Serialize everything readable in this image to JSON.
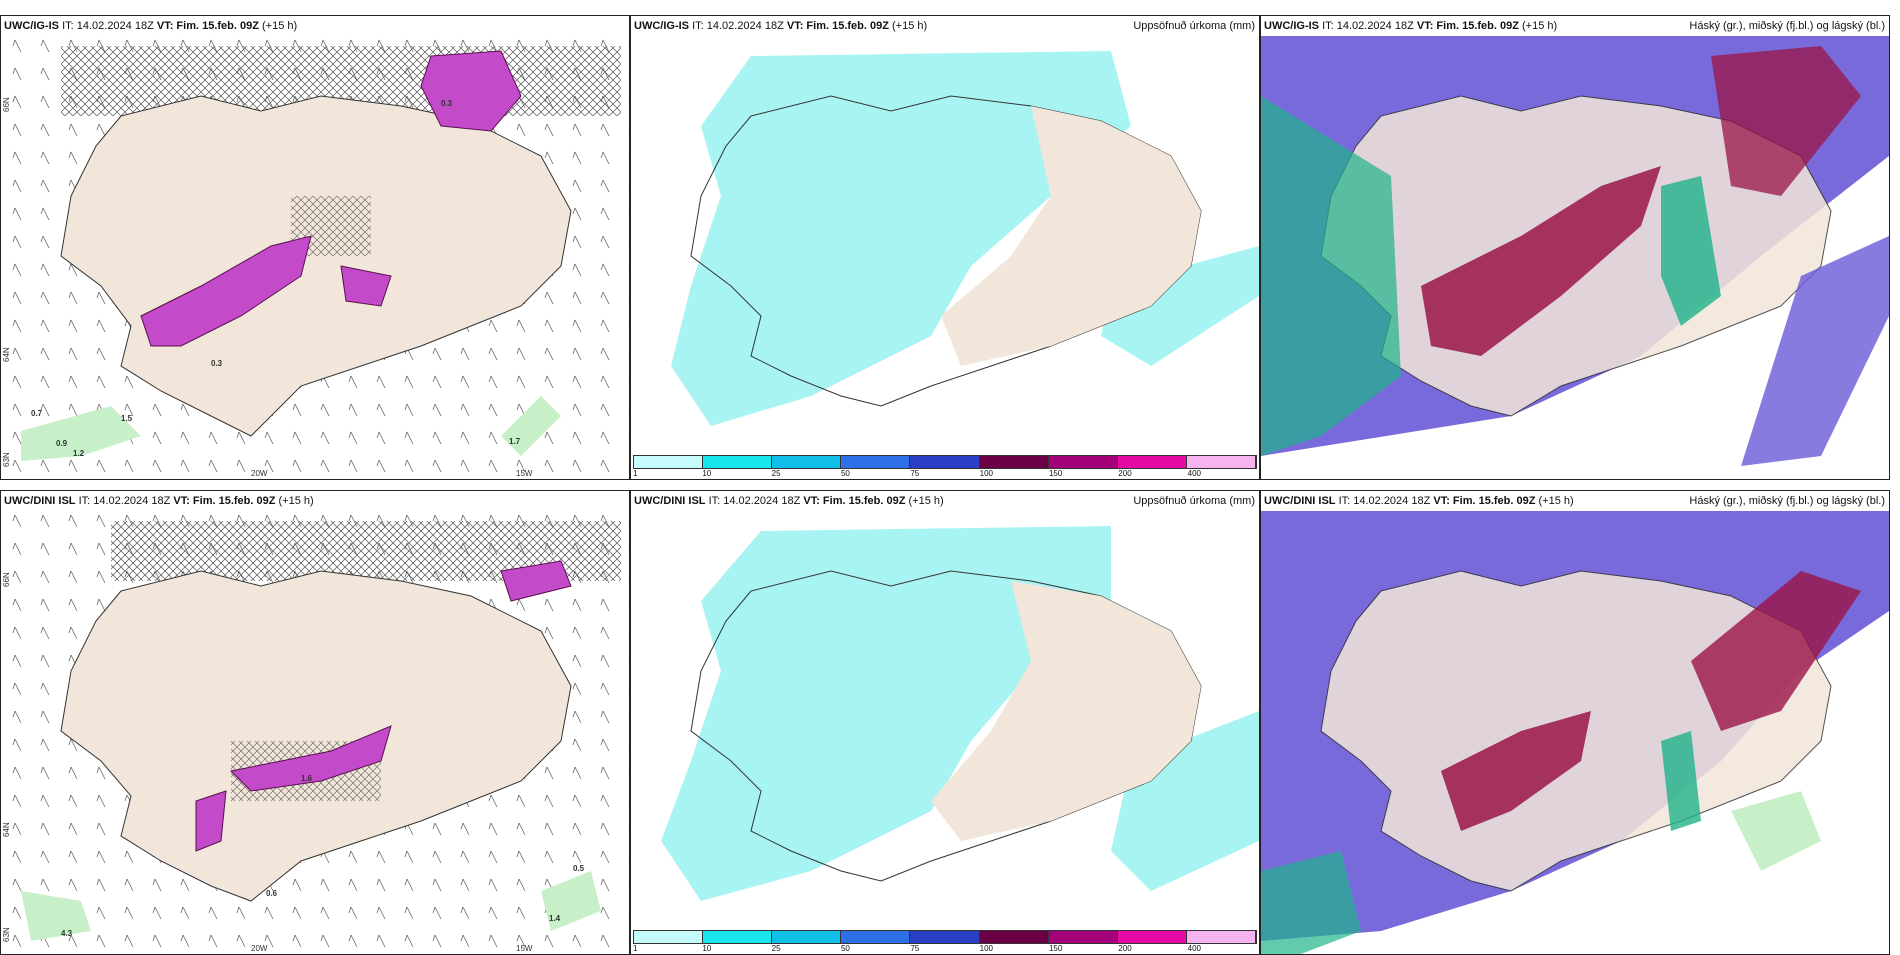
{
  "rows": [
    {
      "left": {
        "model": "UWC/IG-IS",
        "it": "IT: 14.02.2024 18Z",
        "vt": "VT: Fim. 15.feb. 09Z",
        "lead": "(+15 h)"
      },
      "mid": {
        "model": "UWC/IG-IS",
        "it": "IT: 14.02.2024 18Z",
        "vt": "VT: Fim. 15.feb. 09Z",
        "lead": "(+15 h)",
        "right": "Uppsöfnuð úrkoma (mm)"
      },
      "right": {
        "model": "UWC/IG-IS",
        "it": "IT: 14.02.2024 18Z",
        "vt": "VT: Fim. 15.feb. 09Z",
        "lead": "(+15 h)",
        "right": "Háský (gr.), miðský (fj.bl.) og lágský (bl.)"
      }
    },
    {
      "left": {
        "model": "UWC/DINI ISL",
        "it": "IT: 14.02.2024 18Z",
        "vt": "VT: Fim. 15.feb. 09Z",
        "lead": "(+15 h)"
      },
      "mid": {
        "model": "UWC/DINI ISL",
        "it": "IT: 14.02.2024 18Z",
        "vt": "VT: Fim. 15.feb. 09Z",
        "lead": "(+15 h)",
        "right": "Uppsöfnuð úrkoma (mm)"
      },
      "right": {
        "model": "UWC/DINI ISL",
        "it": "IT: 14.02.2024 18Z",
        "vt": "VT: Fim. 15.feb. 09Z",
        "lead": "(+15 h)",
        "right": "Háský (gr.), miðský (fj.bl.) og lágský (bl.)"
      }
    }
  ],
  "axis_labels": {
    "lat66": "66N",
    "lat64": "64N",
    "lat63": "63N",
    "lon20": "20W",
    "lon15": "15W"
  },
  "legend": {
    "ticks": [
      "1",
      "10",
      "25",
      "50",
      "75",
      "100",
      "150",
      "200",
      "400"
    ],
    "colors": [
      "#c6fbfb",
      "#17e6ec",
      "#0fbfe8",
      "#2f6fe6",
      "#2b3fc4",
      "#6c0046",
      "#a4007a",
      "#e50aa5",
      "#f5b3f0"
    ]
  },
  "precip_labels_top": [
    "0.7",
    "0.9",
    "1.2",
    "1.5",
    "0.3",
    "1.7",
    "0.3"
  ],
  "precip_labels_bottom": [
    "0.6",
    "0.5",
    "1.4",
    "1.6",
    "4.3"
  ],
  "colors": {
    "land": "#f2e6da",
    "sea_precip": "#a7f4f3",
    "cloud_high": "#6a5ad8",
    "cloud_mid": "#9a1446",
    "cloud_low": "#1fb38a"
  }
}
